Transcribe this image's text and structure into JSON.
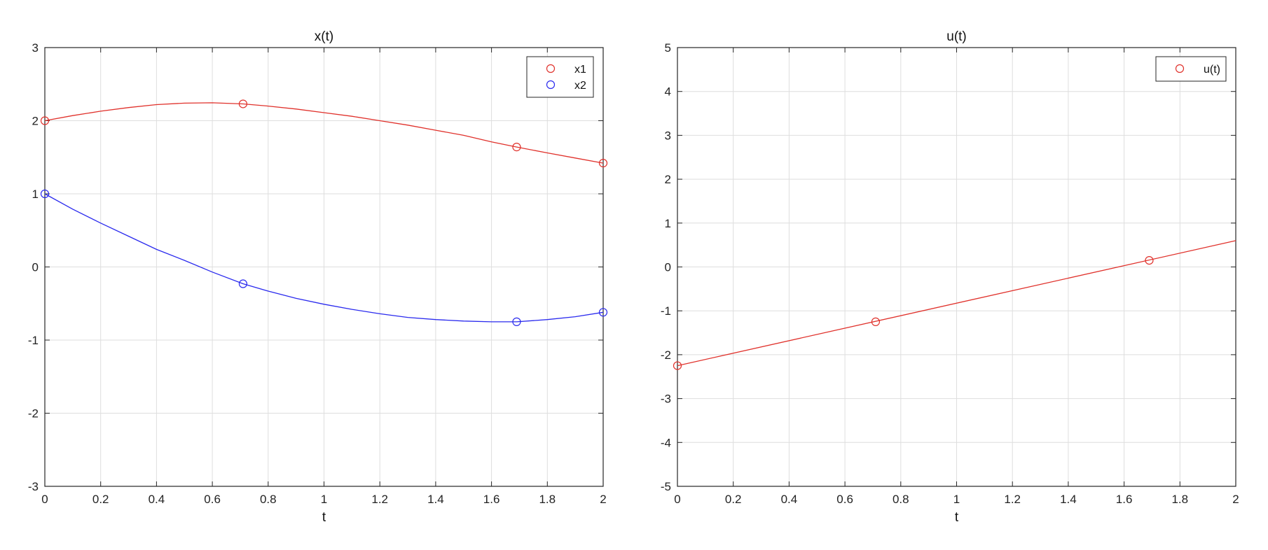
{
  "chart_data": [
    {
      "type": "line",
      "title": "x(t)",
      "xlabel": "t",
      "ylabel": "",
      "xlim": [
        0,
        2
      ],
      "ylim": [
        -3,
        3
      ],
      "xticks": [
        "0",
        "0.2",
        "0.4",
        "0.6",
        "0.8",
        "1",
        "1.2",
        "1.4",
        "1.6",
        "1.8",
        "2"
      ],
      "yticks": [
        "-3",
        "-2",
        "-1",
        "0",
        "1",
        "2",
        "3"
      ],
      "grid": true,
      "legend_position": "top-right",
      "series": [
        {
          "name": "x1",
          "color": "#e0312b",
          "marker": "circle",
          "markers": [
            [
              0,
              2.0
            ],
            [
              0.71,
              2.23
            ],
            [
              1.69,
              1.64
            ],
            [
              2.0,
              1.42
            ]
          ],
          "curve": [
            [
              0,
              2.0
            ],
            [
              0.1,
              2.07
            ],
            [
              0.2,
              2.13
            ],
            [
              0.3,
              2.18
            ],
            [
              0.4,
              2.22
            ],
            [
              0.5,
              2.24
            ],
            [
              0.6,
              2.245
            ],
            [
              0.71,
              2.23
            ],
            [
              0.8,
              2.2
            ],
            [
              0.9,
              2.16
            ],
            [
              1.0,
              2.11
            ],
            [
              1.1,
              2.06
            ],
            [
              1.2,
              2.0
            ],
            [
              1.3,
              1.94
            ],
            [
              1.4,
              1.87
            ],
            [
              1.5,
              1.8
            ],
            [
              1.6,
              1.71
            ],
            [
              1.69,
              1.64
            ],
            [
              1.8,
              1.56
            ],
            [
              1.9,
              1.49
            ],
            [
              2.0,
              1.42
            ]
          ]
        },
        {
          "name": "x2",
          "color": "#2a2aee",
          "marker": "circle",
          "markers": [
            [
              0,
              1.0
            ],
            [
              0.71,
              -0.23
            ],
            [
              1.69,
              -0.75
            ],
            [
              2.0,
              -0.62
            ]
          ],
          "curve": [
            [
              0,
              1.0
            ],
            [
              0.1,
              0.79
            ],
            [
              0.2,
              0.6
            ],
            [
              0.3,
              0.42
            ],
            [
              0.4,
              0.24
            ],
            [
              0.5,
              0.09
            ],
            [
              0.6,
              -0.07
            ],
            [
              0.71,
              -0.23
            ],
            [
              0.8,
              -0.33
            ],
            [
              0.9,
              -0.43
            ],
            [
              1.0,
              -0.51
            ],
            [
              1.1,
              -0.58
            ],
            [
              1.2,
              -0.64
            ],
            [
              1.3,
              -0.69
            ],
            [
              1.4,
              -0.72
            ],
            [
              1.5,
              -0.74
            ],
            [
              1.6,
              -0.75
            ],
            [
              1.69,
              -0.75
            ],
            [
              1.8,
              -0.72
            ],
            [
              1.9,
              -0.68
            ],
            [
              2.0,
              -0.62
            ]
          ]
        }
      ]
    },
    {
      "type": "line",
      "title": "u(t)",
      "xlabel": "t",
      "ylabel": "",
      "xlim": [
        0,
        2
      ],
      "ylim": [
        -5,
        5
      ],
      "xticks": [
        "0",
        "0.2",
        "0.4",
        "0.6",
        "0.8",
        "1",
        "1.2",
        "1.4",
        "1.6",
        "1.8",
        "2"
      ],
      "yticks": [
        "-5",
        "-4",
        "-3",
        "-2",
        "-1",
        "0",
        "1",
        "2",
        "3",
        "4",
        "5"
      ],
      "grid": true,
      "legend_position": "top-right",
      "series": [
        {
          "name": "u(t)",
          "color": "#e0312b",
          "marker": "circle",
          "markers": [
            [
              0,
              -2.25
            ],
            [
              0.71,
              -1.25
            ],
            [
              1.69,
              0.15
            ]
          ],
          "curve": [
            [
              0,
              -2.25
            ],
            [
              2.0,
              0.6
            ]
          ]
        }
      ]
    }
  ]
}
